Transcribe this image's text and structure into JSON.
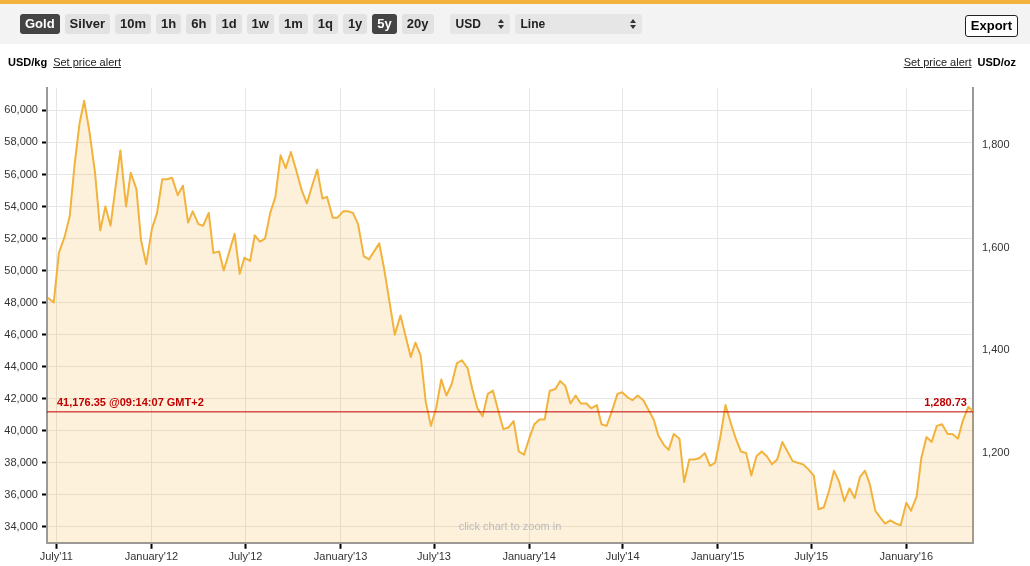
{
  "chart_data": {
    "type": "area",
    "ylabel": "USD/kg",
    "y2label": "USD/oz",
    "annotations": [
      "Gold",
      "Silver",
      "10m",
      "1h",
      "6h",
      "1d",
      "1w",
      "1m",
      "1q",
      "1y",
      "5y",
      "20y",
      "USD",
      "Line",
      "Export",
      "Set price alert",
      "Set price alert",
      "click chart to zoom in",
      {
        "text": "1,280.73",
        "x": "2016-05-09",
        "y": 41176.35
      }
    ],
    "x": [
      "2011-06-15",
      "2011-06-26",
      "2011-07-06",
      "2011-07-17",
      "2011-07-27",
      "2011-08-05",
      "2011-08-15",
      "2011-08-24",
      "2011-09-03",
      "2011-09-14",
      "2011-09-24",
      "2011-10-04",
      "2011-10-14",
      "2011-10-24",
      "2011-11-02",
      "2011-11-13",
      "2011-11-22",
      "2011-12-03",
      "2011-12-12",
      "2011-12-22",
      "2012-01-02",
      "2012-01-12",
      "2012-01-22",
      "2012-02-01",
      "2012-02-10",
      "2012-02-21",
      "2012-03-02",
      "2012-03-12",
      "2012-03-21",
      "2012-04-01",
      "2012-04-10",
      "2012-04-21",
      "2012-04-30",
      "2012-05-11",
      "2012-05-20",
      "2012-05-31",
      "2012-06-10",
      "2012-06-20",
      "2012-06-29",
      "2012-07-10",
      "2012-07-19",
      "2012-07-29",
      "2012-08-08",
      "2012-08-18",
      "2012-08-28",
      "2012-09-07",
      "2012-09-17",
      "2012-09-27",
      "2012-10-07",
      "2012-10-18",
      "2012-10-28",
      "2012-11-07",
      "2012-11-17",
      "2012-11-27",
      "2012-12-06",
      "2012-12-17",
      "2012-12-26",
      "2013-01-06",
      "2013-01-15",
      "2013-01-25",
      "2013-02-04",
      "2013-02-15",
      "2013-02-25",
      "2013-03-07",
      "2013-03-17",
      "2013-03-27",
      "2013-04-06",
      "2013-04-16",
      "2013-04-27",
      "2013-05-07",
      "2013-05-17",
      "2013-05-26",
      "2013-06-05",
      "2013-06-15",
      "2013-06-25",
      "2013-07-05",
      "2013-07-15",
      "2013-07-25",
      "2013-08-04",
      "2013-08-14",
      "2013-08-24",
      "2013-09-04",
      "2013-09-13",
      "2013-09-23",
      "2013-10-03",
      "2013-10-13",
      "2013-10-23",
      "2013-11-01",
      "2013-11-12",
      "2013-11-22",
      "2013-12-02",
      "2013-12-12",
      "2013-12-22",
      "2014-01-01",
      "2014-01-11",
      "2014-01-21",
      "2014-01-31",
      "2014-02-10",
      "2014-02-21",
      "2014-03-02",
      "2014-03-12",
      "2014-03-22",
      "2014-04-01",
      "2014-04-11",
      "2014-04-22",
      "2014-05-01",
      "2014-05-12",
      "2014-05-21",
      "2014-05-31",
      "2014-06-10",
      "2014-06-21",
      "2014-06-30",
      "2014-07-10",
      "2014-07-20",
      "2014-07-30",
      "2014-08-10",
      "2014-08-20",
      "2014-08-30",
      "2014-09-08",
      "2014-09-19",
      "2014-09-28",
      "2014-10-08",
      "2014-10-19",
      "2014-10-28",
      "2014-11-07",
      "2014-11-17",
      "2014-11-27",
      "2014-12-07",
      "2014-12-17",
      "2014-12-27",
      "2015-01-06",
      "2015-01-16",
      "2015-01-26",
      "2015-02-05",
      "2015-02-15",
      "2015-02-25",
      "2015-03-07",
      "2015-03-17",
      "2015-03-27",
      "2015-04-06",
      "2015-04-16",
      "2015-04-26",
      "2015-05-06",
      "2015-05-16",
      "2015-05-26",
      "2015-06-05",
      "2015-06-15",
      "2015-06-25",
      "2015-07-06",
      "2015-07-15",
      "2015-07-25",
      "2015-08-04",
      "2015-08-14",
      "2015-08-24",
      "2015-09-03",
      "2015-09-13",
      "2015-09-23",
      "2015-10-03",
      "2015-10-13",
      "2015-10-22",
      "2015-11-02",
      "2015-11-11",
      "2015-11-21",
      "2015-12-01",
      "2015-12-12",
      "2015-12-21",
      "2016-01-01",
      "2016-01-10",
      "2016-01-21",
      "2016-01-30",
      "2016-02-09",
      "2016-02-19",
      "2016-02-29",
      "2016-03-10",
      "2016-03-21",
      "2016-03-30",
      "2016-04-10",
      "2016-04-19",
      "2016-04-30",
      "2016-05-09"
    ],
    "series": [
      {
        "color": "#f2b33d",
        "values": [
          48300,
          48000,
          51100,
          52100,
          53400,
          56500,
          59200,
          60600,
          58700,
          56100,
          52500,
          54000,
          52800,
          55300,
          57500,
          54000,
          56100,
          55100,
          51900,
          50400,
          52600,
          53600,
          55700,
          55700,
          55800,
          54700,
          55300,
          53000,
          53700,
          52900,
          52800,
          53600,
          51100,
          51200,
          50000,
          51200,
          52300,
          49800,
          50800,
          50600,
          52200,
          51800,
          52000,
          53600,
          54600,
          57200,
          56400,
          57400,
          56300,
          55000,
          54200,
          55300,
          56300,
          54500,
          54600,
          53300,
          53300,
          53700,
          53700,
          53600,
          52900,
          50900,
          50700,
          51200,
          51700,
          50000,
          48000,
          46000,
          47200,
          45900,
          44600,
          45500,
          44700,
          41800,
          40300,
          41400,
          43200,
          42200,
          42900,
          44200,
          44400,
          43900,
          42600,
          41400,
          40900,
          42300,
          42500,
          41400,
          40100,
          40200,
          40600,
          38700,
          38500,
          39500,
          40400,
          40700,
          40700,
          42500,
          42600,
          43100,
          42800,
          41700,
          42200,
          41700,
          41700,
          41400,
          41600,
          40400,
          40300,
          41200,
          42300,
          42400,
          42100,
          41900,
          42200,
          41900,
          41300,
          40700,
          39700,
          39100,
          38800,
          39800,
          39500,
          36800,
          38200,
          38200,
          38300,
          38600,
          37800,
          38000,
          39600,
          41600,
          40500,
          39500,
          38700,
          38600,
          37200,
          38400,
          38700,
          38400,
          37900,
          38200,
          39300,
          38700,
          38100,
          38000,
          37900,
          37600,
          37200,
          35100,
          35200,
          36200,
          37500,
          36800,
          35600,
          36400,
          35800,
          37100,
          37500,
          36700,
          35000,
          34600,
          34200,
          34400,
          34200,
          34100,
          35500,
          35000,
          35900,
          38300,
          39600,
          39300,
          40300,
          40400,
          39800,
          39800,
          39500,
          40600,
          41500,
          41200
        ]
      }
    ],
    "xlim": [
      "2011-06-13",
      "2016-05-09"
    ],
    "xticks": [
      {
        "value": "2011-07-01",
        "label": "July'11"
      },
      {
        "value": "2012-01-01",
        "label": "January'12"
      },
      {
        "value": "2012-07-01",
        "label": "July'12"
      },
      {
        "value": "2013-01-01",
        "label": "January'13"
      },
      {
        "value": "2013-07-01",
        "label": "July'13"
      },
      {
        "value": "2014-01-01",
        "label": "January'14"
      },
      {
        "value": "2014-07-01",
        "label": "July'14"
      },
      {
        "value": "2015-01-01",
        "label": "January'15"
      },
      {
        "value": "2015-07-01",
        "label": "July'15"
      },
      {
        "value": "2016-01-01",
        "label": "January'16"
      }
    ],
    "ylim": [
      33000,
      61400
    ],
    "yticks": [
      {
        "value": 34000,
        "label": "34,000"
      },
      {
        "value": 36000,
        "label": "36,000"
      },
      {
        "value": 38000,
        "label": "38,000"
      },
      {
        "value": 40000,
        "label": "40,000"
      },
      {
        "value": 42000,
        "label": "42,000"
      },
      {
        "value": 44000,
        "label": "44,000"
      },
      {
        "value": 46000,
        "label": "46,000"
      },
      {
        "value": 48000,
        "label": "48,000"
      },
      {
        "value": 50000,
        "label": "50,000"
      },
      {
        "value": 52000,
        "label": "52,000"
      },
      {
        "value": 54000,
        "label": "54,000"
      },
      {
        "value": 56000,
        "label": "56,000"
      },
      {
        "value": 58000,
        "label": "58,000"
      },
      {
        "value": 60000,
        "label": "60,000"
      }
    ],
    "y2lim": [
      1026.41,
      1909.75
    ],
    "y2ticks": [
      {
        "value": 1200,
        "label": "1,200"
      },
      {
        "value": 1400,
        "label": "1,400"
      },
      {
        "value": 1600,
        "label": "1,600"
      },
      {
        "value": 1800,
        "label": "1,800"
      }
    ],
    "ref_lines": [
      {
        "axis": "y",
        "value": 41176.35,
        "label": "41,176.35 @09:14:07 GMT+2",
        "color": "#c00000"
      }
    ],
    "grid": true,
    "legend": false,
    "marker": "none",
    "line_style": "solid"
  }
}
